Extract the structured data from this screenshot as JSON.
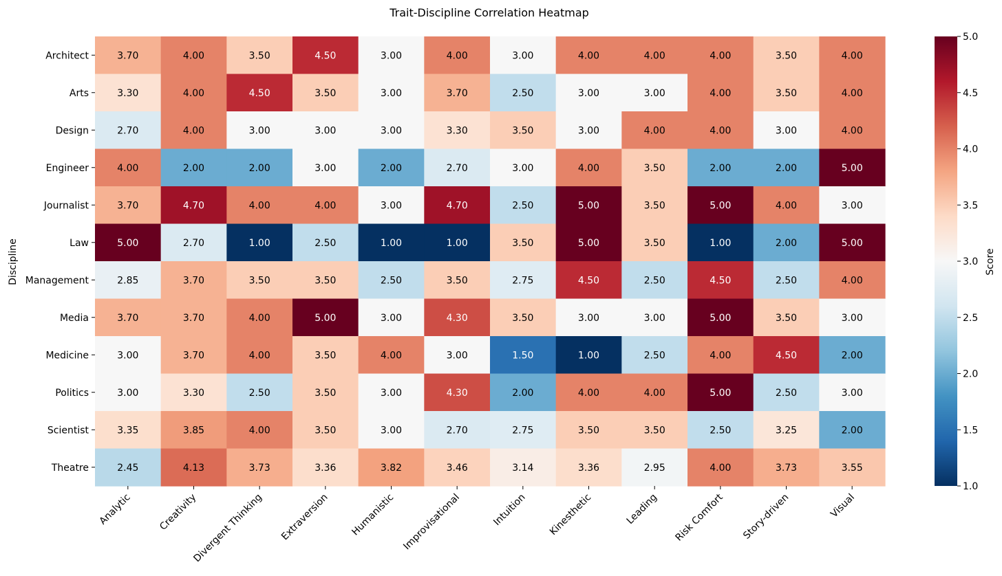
{
  "chart_data": {
    "type": "heatmap",
    "title": "Trait-Discipline Correlation Heatmap",
    "xlabel": "",
    "ylabel": "Discipline",
    "colorbar": {
      "label": "Score",
      "min": 1.0,
      "max": 5.0,
      "ticks": [
        1.0,
        1.5,
        2.0,
        2.5,
        3.0,
        3.5,
        4.0,
        4.5,
        5.0
      ],
      "colormap": "RdBu_r"
    },
    "columns": [
      "Analytic",
      "Creativity",
      "Divergent Thinking",
      "Extraversion",
      "Humanistic",
      "Improvisational",
      "Intuition",
      "Kinesthetic",
      "Leading",
      "Risk Comfort",
      "Story-driven",
      "Visual"
    ],
    "rows": [
      "Architect",
      "Arts",
      "Design",
      "Engineer",
      "Journalist",
      "Law",
      "Management",
      "Media",
      "Medicine",
      "Politics",
      "Scientist",
      "Theatre"
    ],
    "values": [
      [
        3.7,
        4.0,
        3.5,
        4.5,
        3.0,
        4.0,
        3.0,
        4.0,
        4.0,
        4.0,
        3.5,
        4.0
      ],
      [
        3.3,
        4.0,
        4.5,
        3.5,
        3.0,
        3.7,
        2.5,
        3.0,
        3.0,
        4.0,
        3.5,
        4.0
      ],
      [
        2.7,
        4.0,
        3.0,
        3.0,
        3.0,
        3.3,
        3.5,
        3.0,
        4.0,
        4.0,
        3.0,
        4.0
      ],
      [
        4.0,
        2.0,
        2.0,
        3.0,
        2.0,
        2.7,
        3.0,
        4.0,
        3.5,
        2.0,
        2.0,
        5.0
      ],
      [
        3.7,
        4.7,
        4.0,
        4.0,
        3.0,
        4.7,
        2.5,
        5.0,
        3.5,
        5.0,
        4.0,
        3.0
      ],
      [
        5.0,
        2.7,
        1.0,
        2.5,
        1.0,
        1.0,
        3.5,
        5.0,
        3.5,
        1.0,
        2.0,
        5.0
      ],
      [
        2.85,
        3.7,
        3.5,
        3.5,
        2.5,
        3.5,
        2.75,
        4.5,
        2.5,
        4.5,
        2.5,
        4.0
      ],
      [
        3.7,
        3.7,
        4.0,
        5.0,
        3.0,
        4.3,
        3.5,
        3.0,
        3.0,
        5.0,
        3.5,
        3.0
      ],
      [
        3.0,
        3.7,
        4.0,
        3.5,
        4.0,
        3.0,
        1.5,
        1.0,
        2.5,
        4.0,
        4.5,
        2.0
      ],
      [
        3.0,
        3.3,
        2.5,
        3.5,
        3.0,
        4.3,
        2.0,
        4.0,
        4.0,
        5.0,
        2.5,
        3.0
      ],
      [
        3.35,
        3.85,
        4.0,
        3.5,
        3.0,
        2.7,
        2.75,
        3.5,
        3.5,
        2.5,
        3.25,
        2.0
      ],
      [
        2.45,
        4.13,
        3.73,
        3.36,
        3.82,
        3.46,
        3.14,
        3.36,
        2.95,
        4.0,
        3.73,
        3.55
      ]
    ],
    "value_format": "2 decimals",
    "grid": false,
    "legend": "none"
  }
}
